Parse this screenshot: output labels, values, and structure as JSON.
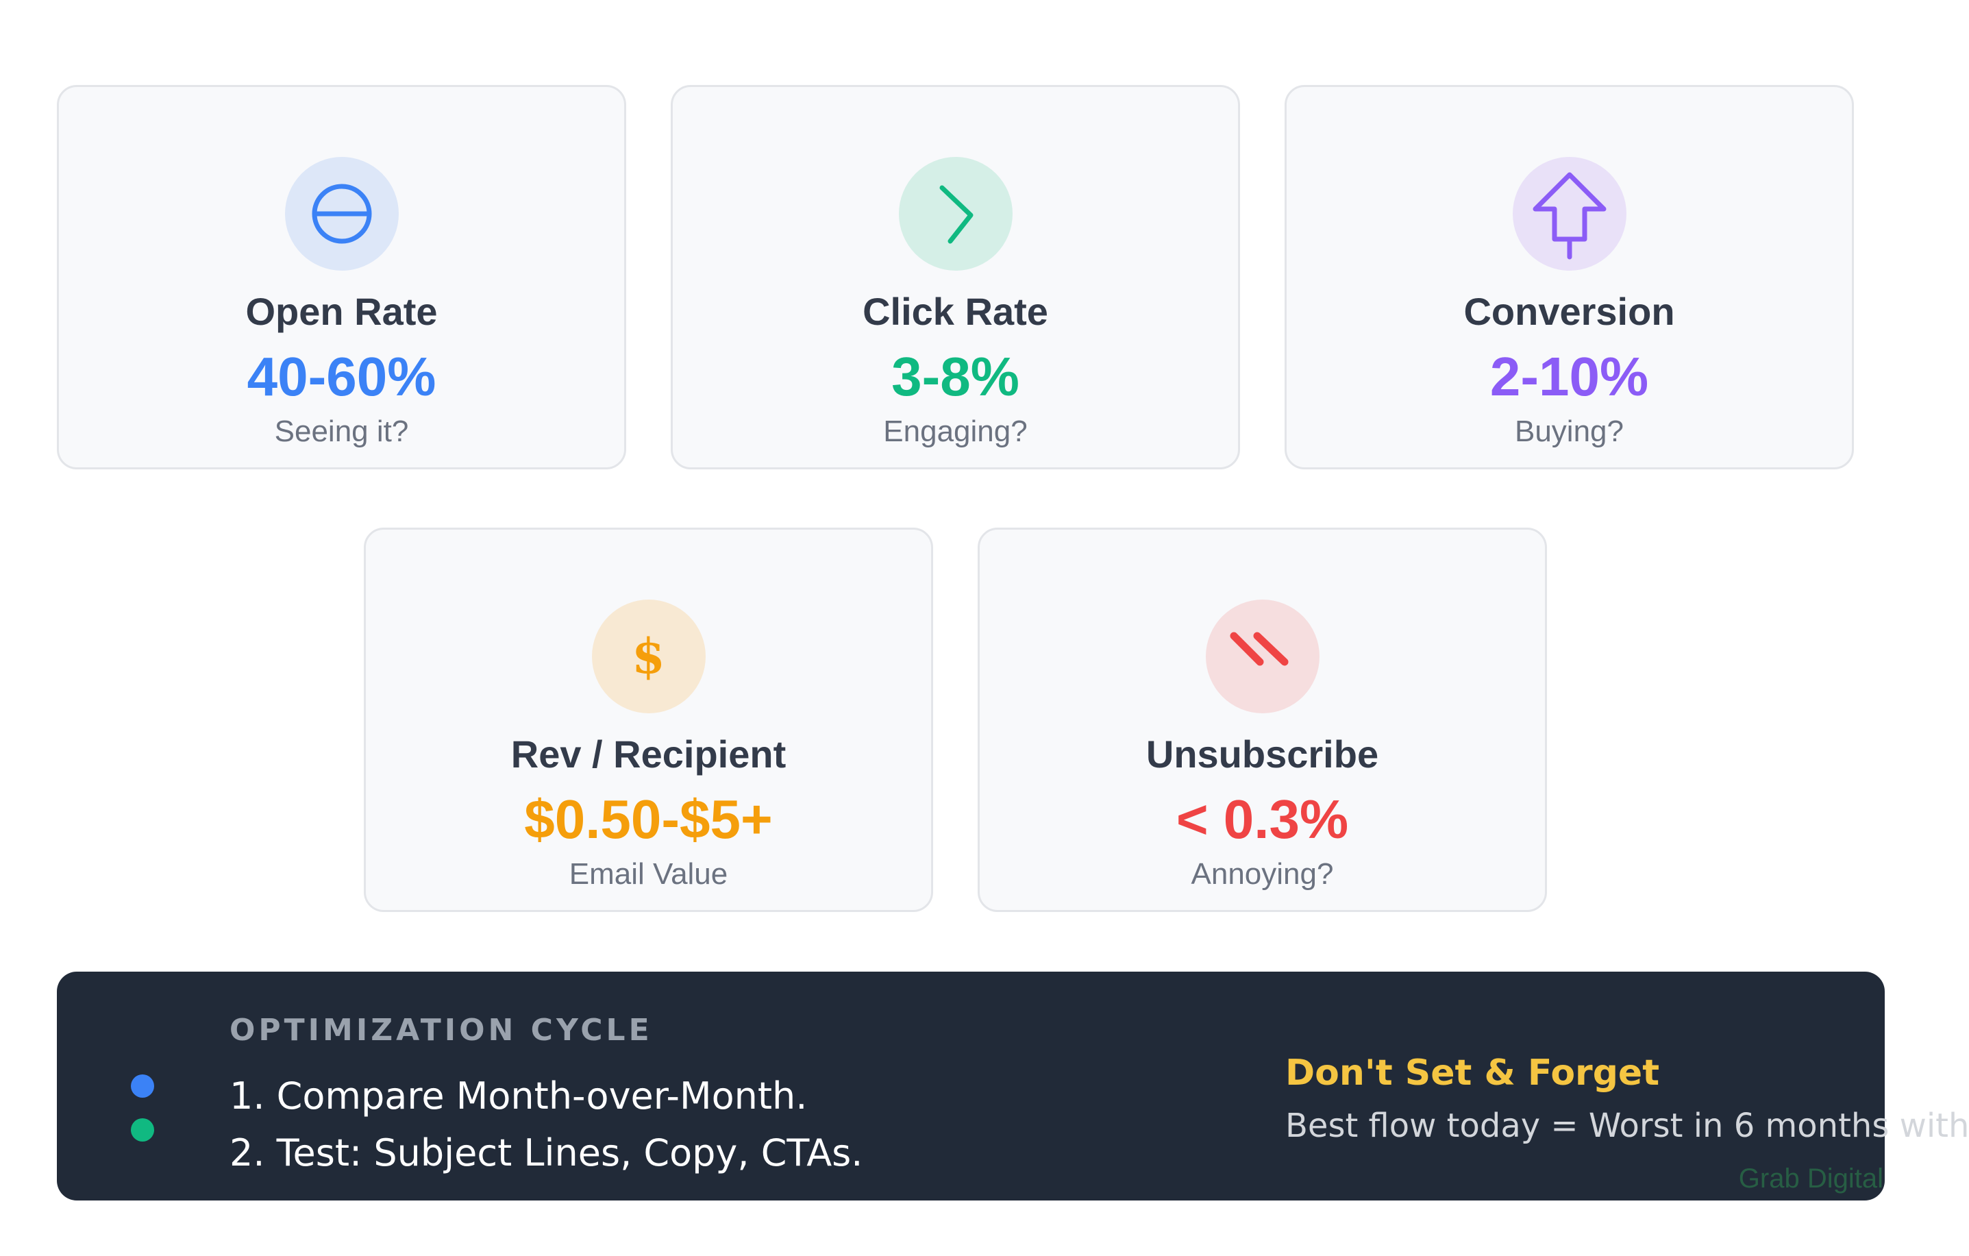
{
  "metrics": [
    {
      "title": "Open Rate",
      "value": "40-60%",
      "subtitle": "Seeing it?",
      "icon": "minus-circle-icon",
      "color": "#3b82f6",
      "icon_bg": "#dde7f8"
    },
    {
      "title": "Click Rate",
      "value": "3-8%",
      "subtitle": "Engaging?",
      "icon": "chevron-right-icon",
      "color": "#10b981",
      "icon_bg": "#d5efe7"
    },
    {
      "title": "Conversion",
      "value": "2-10%",
      "subtitle": "Buying?",
      "icon": "arrow-up-icon",
      "color": "#8b5cf6",
      "icon_bg": "#e9e1f8"
    },
    {
      "title": "Rev / Recipient",
      "value": "$0.50-$5+",
      "subtitle": "Email Value",
      "icon": "dollar-icon",
      "icon_glyph": "$",
      "color": "#f59e0b",
      "icon_bg": "#f8e9d3"
    },
    {
      "title": "Unsubscribe",
      "value": "< 0.3%",
      "subtitle": "Annoying?",
      "icon": "slashes-icon",
      "color": "#ef4444",
      "icon_bg": "#f6dedf"
    }
  ],
  "cycle": {
    "heading": "OPTIMIZATION CYCLE",
    "steps": [
      "1. Compare Month-over-Month.",
      "2. Test: Subject Lines, Copy, CTAs."
    ],
    "dot_colors": [
      "#3b82f6",
      "#10b981"
    ]
  },
  "tip": {
    "heading": "Don't Set & Forget",
    "text": "Best flow today = Worst in 6 months with"
  },
  "watermark": "Grab Digital",
  "colors": {
    "panel_bg": "#212a38",
    "card_bg": "#f8f9fb",
    "title_text": "#333b4a",
    "sub_text": "#6b7280",
    "tip_heading": "#f5c542"
  }
}
